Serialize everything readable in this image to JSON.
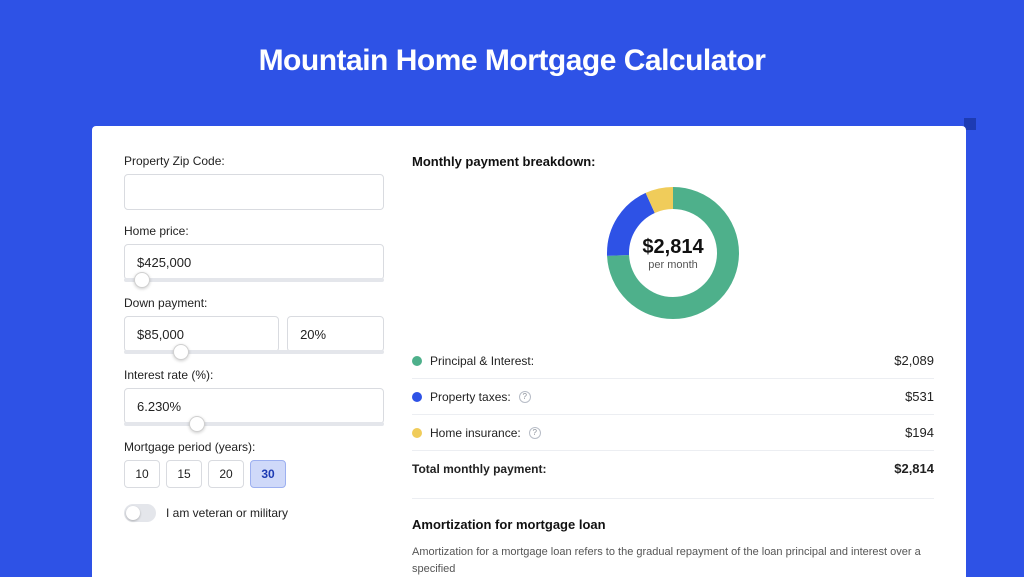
{
  "page": {
    "title": "Mountain Home Mortgage Calculator",
    "background_color": "#2e52e6",
    "card_background": "#ffffff"
  },
  "form": {
    "zip": {
      "label": "Property Zip Code:",
      "value": ""
    },
    "home_price": {
      "label": "Home price:",
      "value": "$425,000",
      "slider_pct": 7
    },
    "down_payment": {
      "label": "Down payment:",
      "value": "$85,000",
      "pct_value": "20%",
      "slider_pct": 22
    },
    "interest_rate": {
      "label": "Interest rate (%):",
      "value": "6.230%",
      "slider_pct": 28
    },
    "period": {
      "label": "Mortgage period (years):",
      "options": [
        "10",
        "15",
        "20",
        "30"
      ],
      "selected": "30"
    },
    "veteran": {
      "label": "I am veteran or military",
      "checked": false
    }
  },
  "breakdown": {
    "heading": "Monthly payment breakdown:",
    "donut": {
      "center_value": "$2,814",
      "center_sub": "per month",
      "slices": [
        {
          "key": "principal_interest",
          "label": "Principal & Interest:",
          "value": "$2,089",
          "color": "#4eb08b",
          "fraction": 0.742
        },
        {
          "key": "property_taxes",
          "label": "Property taxes:",
          "value": "$531",
          "color": "#2e52e6",
          "fraction": 0.189,
          "info": true
        },
        {
          "key": "home_insurance",
          "label": "Home insurance:",
          "value": "$194",
          "color": "#f0cc5a",
          "fraction": 0.069,
          "info": true
        }
      ],
      "thickness": 22,
      "radius": 55
    },
    "total": {
      "label": "Total monthly payment:",
      "value": "$2,814"
    }
  },
  "amortization": {
    "heading": "Amortization for mortgage loan",
    "text": "Amortization for a mortgage loan refers to the gradual repayment of the loan principal and interest over a specified"
  }
}
